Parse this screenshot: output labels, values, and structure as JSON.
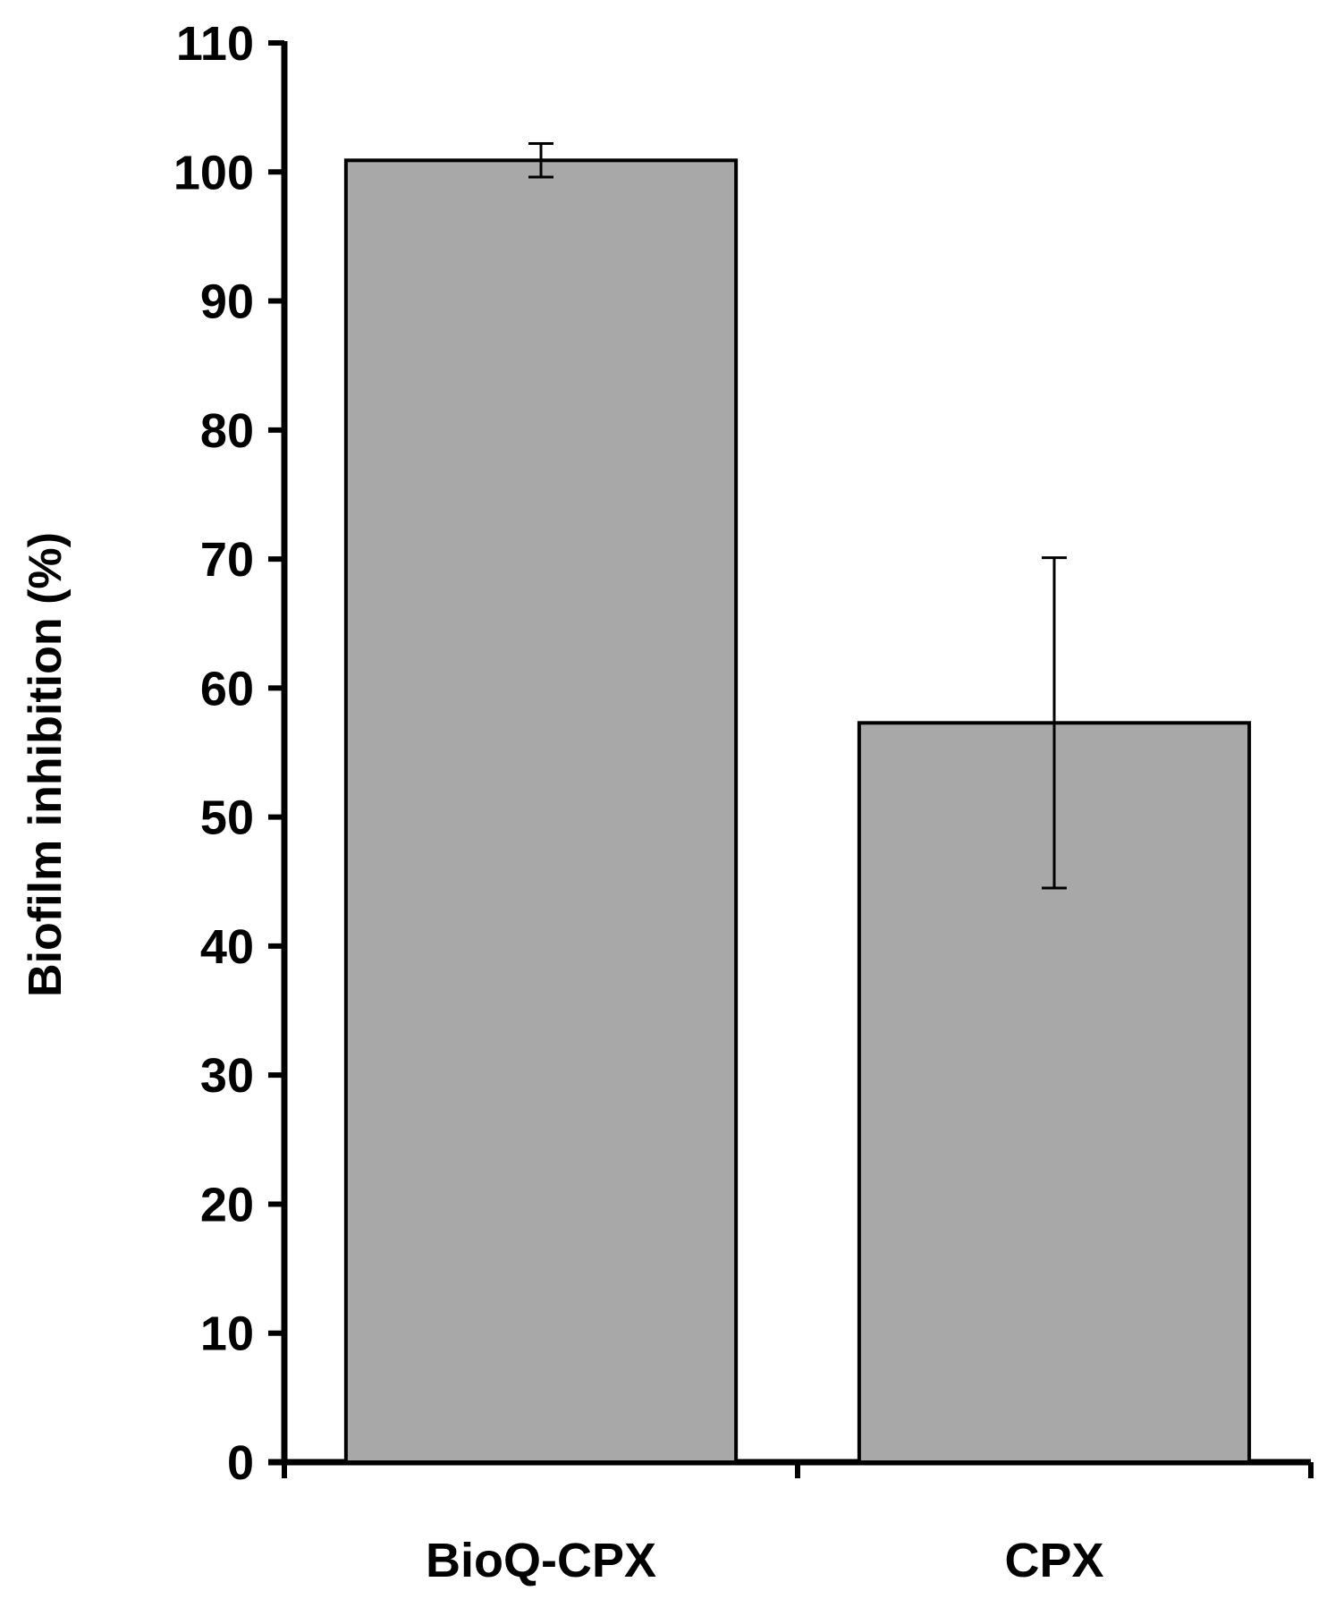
{
  "chart_data": {
    "type": "bar",
    "title": "",
    "xlabel": "",
    "ylabel": "Biofilm inhibition (%)",
    "categories": [
      "BioQ-CPX",
      "CPX"
    ],
    "series": [
      {
        "values": [
          100.9,
          57.3
        ],
        "error": [
          1.3,
          12.8
        ]
      }
    ],
    "ylim": [
      0,
      110
    ],
    "yticks": [
      "0",
      "10",
      "20",
      "30",
      "40",
      "50",
      "60",
      "70",
      "80",
      "90",
      "100",
      "110"
    ],
    "grid": false,
    "legend": "none",
    "colors": {
      "bar_fill": "#a8a8a8",
      "bar_stroke": "#000000",
      "axis": "#000000"
    }
  }
}
